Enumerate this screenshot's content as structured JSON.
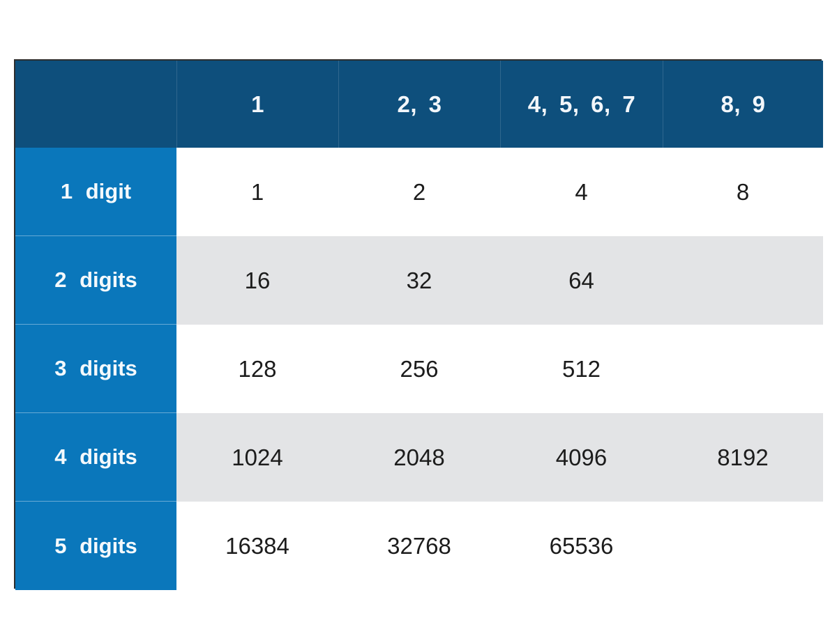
{
  "chart_data": {
    "type": "table",
    "columns": [
      "1",
      "2, 3",
      "4, 5, 6, 7",
      "8, 9"
    ],
    "rows": [
      {
        "label": "1 digit",
        "values": [
          "1",
          "2",
          "4",
          "8"
        ]
      },
      {
        "label": "2 digits",
        "values": [
          "16",
          "32",
          "64",
          ""
        ]
      },
      {
        "label": "3 digits",
        "values": [
          "128",
          "256",
          "512",
          ""
        ]
      },
      {
        "label": "4 digits",
        "values": [
          "1024",
          "2048",
          "4096",
          "8192"
        ]
      },
      {
        "label": "5 digits",
        "values": [
          "16384",
          "32768",
          "65536",
          ""
        ]
      }
    ],
    "layout_hints": {
      "header_row": "top, dark blue",
      "row_header_column": "left, bright blue",
      "striping": "alternate rows light gray (rows 2 and 4)",
      "grid": "no inner vertical lines in data area"
    }
  },
  "colors": {
    "header_bg": "#0e4f7c",
    "row_header_bg": "#0a77bb",
    "stripe_bg": "#e3e4e6",
    "table_border": "#2e2e2e",
    "header_text": "#f2f6fa",
    "data_text": "#1c1c1c"
  }
}
